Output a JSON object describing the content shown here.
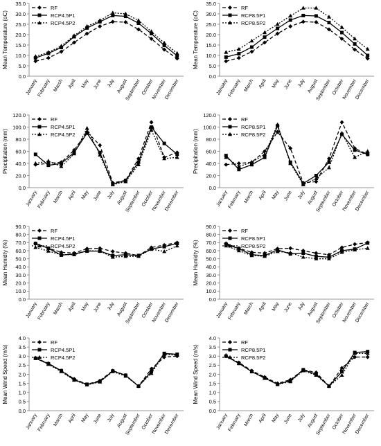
{
  "chart_data": [
    {
      "type": "line",
      "categories": [
        "January",
        "February",
        "March",
        "April",
        "May",
        "June",
        "July",
        "August",
        "September",
        "October",
        "November",
        "December"
      ],
      "ylabel": "Mean Temperature (oC)",
      "ylim": [
        0,
        35
      ],
      "yticks": [
        0,
        5,
        10,
        15,
        20,
        25,
        30,
        35
      ],
      "ytick_decimals": 1,
      "legend": "top-left",
      "grid": false,
      "series": [
        {
          "name": "RF",
          "values": [
            7.2,
            8.8,
            11.8,
            16.2,
            20.5,
            24.0,
            26.2,
            26.0,
            22.5,
            18.0,
            12.8,
            8.5
          ]
        },
        {
          "name": "RCP4.5P1",
          "values": [
            8.8,
            11.0,
            13.8,
            19.0,
            23.2,
            26.2,
            29.2,
            28.8,
            25.5,
            20.5,
            14.8,
            9.8
          ]
        },
        {
          "name": "RCP4.5P2",
          "values": [
            9.5,
            11.5,
            14.5,
            19.5,
            24.0,
            26.8,
            30.5,
            30.0,
            26.8,
            21.5,
            16.0,
            11.0
          ]
        }
      ]
    },
    {
      "type": "line",
      "categories": [
        "January",
        "February",
        "March",
        "April",
        "May",
        "June",
        "July",
        "August",
        "September",
        "October",
        "November",
        "December"
      ],
      "ylabel": "Mean Temperature (oC)",
      "ylim": [
        0,
        35
      ],
      "yticks": [
        0,
        5,
        10,
        15,
        20,
        25,
        30,
        35
      ],
      "ytick_decimals": 1,
      "legend": "top-left",
      "grid": false,
      "series": [
        {
          "name": "RF",
          "values": [
            7.2,
            8.8,
            11.8,
            16.2,
            20.5,
            24.0,
            26.2,
            26.0,
            22.5,
            18.0,
            12.8,
            8.5
          ]
        },
        {
          "name": "RCP8.5P1",
          "values": [
            9.2,
            10.8,
            14.0,
            18.8,
            23.0,
            27.0,
            29.2,
            29.0,
            25.8,
            21.0,
            15.5,
            10.0
          ]
        },
        {
          "name": "RCP8.5P2",
          "values": [
            11.5,
            13.0,
            17.0,
            21.0,
            25.0,
            29.0,
            32.8,
            32.8,
            28.5,
            23.5,
            18.0,
            13.0
          ]
        }
      ]
    },
    {
      "type": "line",
      "categories": [
        "January",
        "February",
        "March",
        "April",
        "May",
        "June",
        "July",
        "August",
        "September",
        "October",
        "November",
        "December"
      ],
      "ylabel": "Precipitation (mm)",
      "ylim": [
        0,
        120
      ],
      "yticks": [
        0,
        20,
        40,
        60,
        80,
        100,
        120
      ],
      "ytick_decimals": 1,
      "legend": "top-left",
      "grid": false,
      "series": [
        {
          "name": "RF",
          "values": [
            38,
            40,
            42,
            62,
            92,
            70,
            8,
            12,
            48,
            108,
            50,
            58
          ]
        },
        {
          "name": "RCP4.5P1",
          "values": [
            55,
            37,
            40,
            58,
            90,
            58,
            6,
            12,
            42,
            100,
            73,
            55
          ]
        },
        {
          "name": "RCP4.5P2",
          "values": [
            40,
            44,
            35,
            56,
            98,
            54,
            5,
            10,
            38,
            95,
            48,
            50
          ]
        }
      ]
    },
    {
      "type": "line",
      "categories": [
        "January",
        "February",
        "March",
        "April",
        "May",
        "June",
        "July",
        "August",
        "September",
        "October",
        "November",
        "December"
      ],
      "ylabel": "Precipitation (mm)",
      "ylim": [
        0,
        120
      ],
      "yticks": [
        0,
        20,
        40,
        60,
        80,
        100,
        120
      ],
      "ytick_decimals": 1,
      "legend": "top-left",
      "grid": false,
      "series": [
        {
          "name": "RF",
          "values": [
            38,
            40,
            42,
            60,
            92,
            65,
            8,
            10,
            48,
            108,
            65,
            55
          ]
        },
        {
          "name": "RCP8.5P1",
          "values": [
            53,
            30,
            38,
            50,
            102,
            42,
            7,
            20,
            42,
            88,
            62,
            55
          ]
        },
        {
          "name": "RCP8.5P2",
          "values": [
            50,
            35,
            42,
            55,
            104,
            40,
            5,
            15,
            33,
            90,
            50,
            60
          ]
        }
      ]
    },
    {
      "type": "line",
      "categories": [
        "January",
        "February",
        "March",
        "April",
        "May",
        "June",
        "July",
        "August",
        "September",
        "October",
        "November",
        "December"
      ],
      "ylabel": "Mean Humidty (%)",
      "ylim": [
        0,
        90
      ],
      "yticks": [
        0,
        10,
        20,
        30,
        40,
        50,
        60,
        70,
        80,
        90
      ],
      "ytick_decimals": 1,
      "legend": "top-left",
      "grid": false,
      "series": [
        {
          "name": "RF",
          "values": [
            69,
            63,
            58,
            57,
            62.5,
            63,
            59,
            57,
            54,
            64,
            67,
            70
          ]
        },
        {
          "name": "RCP4.5P1",
          "values": [
            69,
            63,
            54.5,
            56,
            59.5,
            59.5,
            54,
            55,
            54,
            62,
            65,
            69
          ]
        },
        {
          "name": "RCP4.5P2",
          "values": [
            64,
            59.5,
            55,
            55,
            60,
            59.5,
            52,
            53,
            53,
            62,
            59,
            66
          ]
        }
      ]
    },
    {
      "type": "line",
      "categories": [
        "January",
        "February",
        "March",
        "April",
        "May",
        "June",
        "July",
        "August",
        "September",
        "October",
        "November",
        "December"
      ],
      "ylabel": "Mean Humidty (%)",
      "ylim": [
        0,
        90
      ],
      "yticks": [
        0,
        10,
        20,
        30,
        40,
        50,
        60,
        70,
        80,
        90
      ],
      "ytick_decimals": 1,
      "legend": "top-left",
      "grid": false,
      "series": [
        {
          "name": "RF",
          "values": [
            69,
            63,
            58,
            57,
            62.5,
            63,
            60,
            57,
            55,
            64,
            68,
            70
          ]
        },
        {
          "name": "RCP8.5P1",
          "values": [
            68,
            62.5,
            55,
            54,
            61,
            56,
            57,
            53,
            52,
            60,
            62,
            69.5
          ]
        },
        {
          "name": "RCP8.5P2",
          "values": [
            66,
            60,
            54,
            53,
            59,
            57.5,
            52,
            50,
            50,
            58,
            61,
            63
          ]
        }
      ]
    },
    {
      "type": "line",
      "categories": [
        "January",
        "February",
        "March",
        "April",
        "May",
        "June",
        "July",
        "August",
        "September",
        "October",
        "November",
        "December"
      ],
      "ylabel": "Mean Wind Speed (m/s)",
      "ylim": [
        0,
        4.0
      ],
      "yticks": [
        0,
        0.5,
        1,
        1.5,
        2,
        2.5,
        3,
        3.5,
        4
      ],
      "ytick_decimals": 1,
      "legend": "top-left",
      "grid": false,
      "series": [
        {
          "name": "RF",
          "values": [
            2.9,
            2.6,
            2.2,
            1.75,
            1.45,
            1.65,
            2.2,
            1.95,
            1.35,
            2.3,
            2.95,
            3.0
          ]
        },
        {
          "name": "RCP4.5P1",
          "values": [
            2.88,
            2.58,
            2.2,
            1.7,
            1.45,
            1.6,
            2.18,
            1.95,
            1.35,
            2.15,
            3.15,
            3.1
          ]
        },
        {
          "name": "RCP4.5P2",
          "values": [
            2.9,
            2.55,
            2.15,
            1.68,
            1.42,
            1.58,
            2.15,
            1.9,
            1.35,
            2.05,
            3.1,
            3.05
          ]
        }
      ]
    },
    {
      "type": "line",
      "categories": [
        "January",
        "February",
        "March",
        "April",
        "May",
        "June",
        "July",
        "August",
        "September",
        "October",
        "November",
        "December"
      ],
      "ylabel": "Mean Wind Speed (m/s)",
      "ylim": [
        0,
        4.0
      ],
      "yticks": [
        0,
        0.5,
        1,
        1.5,
        2,
        2.5,
        3,
        3.5,
        4
      ],
      "ytick_decimals": 1,
      "legend": "top-left",
      "grid": false,
      "series": [
        {
          "name": "RF",
          "values": [
            3.0,
            2.65,
            2.2,
            1.85,
            1.5,
            1.7,
            2.25,
            2.1,
            1.35,
            2.35,
            2.95,
            2.95
          ]
        },
        {
          "name": "RCP8.5P1",
          "values": [
            3.0,
            2.6,
            2.15,
            1.8,
            1.45,
            1.65,
            2.25,
            2.0,
            1.35,
            2.15,
            3.2,
            3.25
          ]
        },
        {
          "name": "RCP8.5P2",
          "values": [
            3.05,
            2.6,
            2.15,
            1.78,
            1.45,
            1.6,
            2.2,
            1.95,
            1.35,
            1.95,
            3.15,
            3.15
          ]
        }
      ]
    }
  ]
}
